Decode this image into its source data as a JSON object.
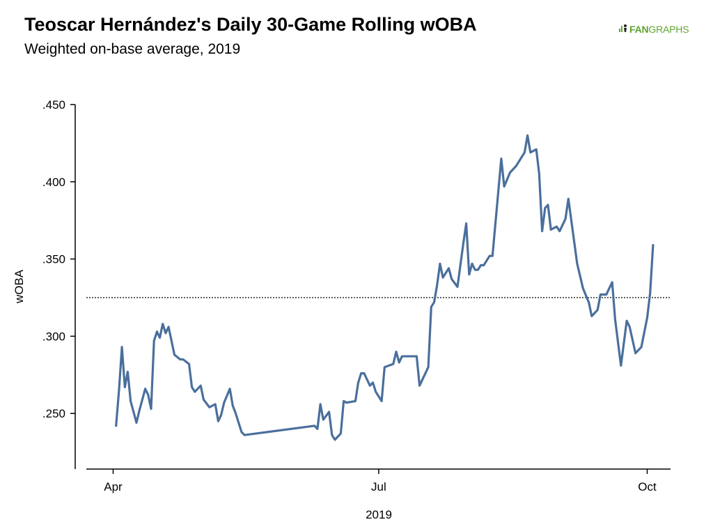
{
  "header": {
    "title": "Teoscar Hernández's Daily 30-Game Rolling wOBA",
    "subtitle": "Weighted on-base average, 2019",
    "logo_text_a": "FAN",
    "logo_text_b": "GRAPHS"
  },
  "colors": {
    "line": "#4a6f9c",
    "brand": "#5fa432",
    "reference_line": "#000000"
  },
  "chart_data": {
    "type": "line",
    "title": "Teoscar Hernández's Daily 30-Game Rolling wOBA",
    "subtitle": "Weighted on-base average, 2019",
    "xlabel": "2019",
    "ylabel": "wOBA",
    "xlim": [
      "2019-03-19",
      "2019-10-09"
    ],
    "ylim": [
      0.214,
      0.45
    ],
    "x_ticks": [
      {
        "date": "2019-04-01",
        "label": "Apr"
      },
      {
        "date": "2019-07-01",
        "label": "Jul"
      },
      {
        "date": "2019-10-01",
        "label": "Oct"
      }
    ],
    "y_ticks": [
      {
        "value": 0.25,
        "label": ".250"
      },
      {
        "value": 0.3,
        "label": ".300"
      },
      {
        "value": 0.35,
        "label": ".350"
      },
      {
        "value": 0.4,
        "label": ".400"
      },
      {
        "value": 0.45,
        "label": ".450"
      }
    ],
    "grid": false,
    "reference_line": {
      "value": 0.325,
      "style": "dotted"
    },
    "series": [
      {
        "points": [
          [
            "2019-04-02",
            0.242
          ],
          [
            "2019-04-03",
            0.265
          ],
          [
            "2019-04-04",
            0.293
          ],
          [
            "2019-04-05",
            0.267
          ],
          [
            "2019-04-06",
            0.277
          ],
          [
            "2019-04-07",
            0.258
          ],
          [
            "2019-04-09",
            0.244
          ],
          [
            "2019-04-10",
            0.252
          ],
          [
            "2019-04-12",
            0.266
          ],
          [
            "2019-04-13",
            0.262
          ],
          [
            "2019-04-14",
            0.253
          ],
          [
            "2019-04-15",
            0.297
          ],
          [
            "2019-04-16",
            0.303
          ],
          [
            "2019-04-17",
            0.299
          ],
          [
            "2019-04-18",
            0.308
          ],
          [
            "2019-04-19",
            0.302
          ],
          [
            "2019-04-20",
            0.306
          ],
          [
            "2019-04-22",
            0.288
          ],
          [
            "2019-04-24",
            0.285
          ],
          [
            "2019-04-25",
            0.285
          ],
          [
            "2019-04-27",
            0.282
          ],
          [
            "2019-04-28",
            0.267
          ],
          [
            "2019-04-29",
            0.264
          ],
          [
            "2019-05-01",
            0.268
          ],
          [
            "2019-05-02",
            0.259
          ],
          [
            "2019-05-04",
            0.254
          ],
          [
            "2019-05-06",
            0.256
          ],
          [
            "2019-05-07",
            0.245
          ],
          [
            "2019-05-08",
            0.249
          ],
          [
            "2019-05-09",
            0.257
          ],
          [
            "2019-05-11",
            0.266
          ],
          [
            "2019-05-12",
            0.255
          ],
          [
            "2019-05-13",
            0.25
          ],
          [
            "2019-05-15",
            0.238
          ],
          [
            "2019-05-16",
            0.236
          ],
          [
            "2019-06-09",
            0.242
          ],
          [
            "2019-06-10",
            0.24
          ],
          [
            "2019-06-11",
            0.256
          ],
          [
            "2019-06-12",
            0.246
          ],
          [
            "2019-06-14",
            0.251
          ],
          [
            "2019-06-15",
            0.236
          ],
          [
            "2019-06-16",
            0.233
          ],
          [
            "2019-06-18",
            0.237
          ],
          [
            "2019-06-19",
            0.258
          ],
          [
            "2019-06-20",
            0.257
          ],
          [
            "2019-06-23",
            0.258
          ],
          [
            "2019-06-24",
            0.27
          ],
          [
            "2019-06-25",
            0.276
          ],
          [
            "2019-06-26",
            0.276
          ],
          [
            "2019-06-28",
            0.268
          ],
          [
            "2019-06-29",
            0.27
          ],
          [
            "2019-06-30",
            0.264
          ],
          [
            "2019-07-02",
            0.258
          ],
          [
            "2019-07-03",
            0.28
          ],
          [
            "2019-07-06",
            0.282
          ],
          [
            "2019-07-07",
            0.29
          ],
          [
            "2019-07-08",
            0.283
          ],
          [
            "2019-07-09",
            0.287
          ],
          [
            "2019-07-14",
            0.287
          ],
          [
            "2019-07-15",
            0.268
          ],
          [
            "2019-07-18",
            0.28
          ],
          [
            "2019-07-19",
            0.319
          ],
          [
            "2019-07-20",
            0.322
          ],
          [
            "2019-07-21",
            0.333
          ],
          [
            "2019-07-22",
            0.347
          ],
          [
            "2019-07-23",
            0.338
          ],
          [
            "2019-07-25",
            0.344
          ],
          [
            "2019-07-26",
            0.337
          ],
          [
            "2019-07-28",
            0.332
          ],
          [
            "2019-07-30",
            0.36
          ],
          [
            "2019-07-31",
            0.373
          ],
          [
            "2019-08-01",
            0.34
          ],
          [
            "2019-08-02",
            0.347
          ],
          [
            "2019-08-03",
            0.343
          ],
          [
            "2019-08-04",
            0.343
          ],
          [
            "2019-08-05",
            0.346
          ],
          [
            "2019-08-06",
            0.346
          ],
          [
            "2019-08-07",
            0.349
          ],
          [
            "2019-08-08",
            0.352
          ],
          [
            "2019-08-09",
            0.352
          ],
          [
            "2019-08-12",
            0.415
          ],
          [
            "2019-08-13",
            0.397
          ],
          [
            "2019-08-15",
            0.406
          ],
          [
            "2019-08-17",
            0.41
          ],
          [
            "2019-08-18",
            0.413
          ],
          [
            "2019-08-20",
            0.419
          ],
          [
            "2019-08-21",
            0.43
          ],
          [
            "2019-08-22",
            0.419
          ],
          [
            "2019-08-24",
            0.421
          ],
          [
            "2019-08-25",
            0.405
          ],
          [
            "2019-08-26",
            0.368
          ],
          [
            "2019-08-27",
            0.383
          ],
          [
            "2019-08-28",
            0.385
          ],
          [
            "2019-08-29",
            0.369
          ],
          [
            "2019-08-31",
            0.371
          ],
          [
            "2019-09-01",
            0.368
          ],
          [
            "2019-09-02",
            0.372
          ],
          [
            "2019-09-03",
            0.376
          ],
          [
            "2019-09-04",
            0.389
          ],
          [
            "2019-09-05",
            0.375
          ],
          [
            "2019-09-06",
            0.361
          ],
          [
            "2019-09-07",
            0.347
          ],
          [
            "2019-09-09",
            0.331
          ],
          [
            "2019-09-11",
            0.322
          ],
          [
            "2019-09-12",
            0.313
          ],
          [
            "2019-09-14",
            0.317
          ],
          [
            "2019-09-15",
            0.327
          ],
          [
            "2019-09-17",
            0.327
          ],
          [
            "2019-09-18",
            0.331
          ],
          [
            "2019-09-19",
            0.335
          ],
          [
            "2019-09-20",
            0.311
          ],
          [
            "2019-09-22",
            0.281
          ],
          [
            "2019-09-24",
            0.31
          ],
          [
            "2019-09-25",
            0.306
          ],
          [
            "2019-09-27",
            0.289
          ],
          [
            "2019-09-29",
            0.293
          ],
          [
            "2019-10-01",
            0.312
          ],
          [
            "2019-10-02",
            0.328
          ],
          [
            "2019-10-03",
            0.359
          ]
        ]
      }
    ]
  }
}
